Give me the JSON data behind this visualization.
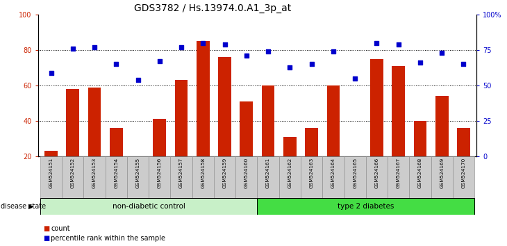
{
  "title": "GDS3782 / Hs.13974.0.A1_3p_at",
  "samples": [
    "GSM524151",
    "GSM524152",
    "GSM524153",
    "GSM524154",
    "GSM524155",
    "GSM524156",
    "GSM524157",
    "GSM524158",
    "GSM524159",
    "GSM524160",
    "GSM524161",
    "GSM524162",
    "GSM524163",
    "GSM524164",
    "GSM524165",
    "GSM524166",
    "GSM524167",
    "GSM524168",
    "GSM524169",
    "GSM524170"
  ],
  "counts": [
    23,
    58,
    59,
    36,
    20,
    41,
    63,
    85,
    76,
    51,
    60,
    31,
    36,
    60,
    20,
    75,
    71,
    40,
    54,
    36
  ],
  "percentiles": [
    59,
    76,
    77,
    65,
    54,
    67,
    77,
    80,
    79,
    71,
    74,
    63,
    65,
    74,
    55,
    80,
    79,
    66,
    73,
    65
  ],
  "non_diabetic_count": 10,
  "type2_diabetes_count": 10,
  "ylim_left": [
    20,
    100
  ],
  "ylim_right": [
    0,
    100
  ],
  "yticks_left": [
    20,
    40,
    60,
    80,
    100
  ],
  "yticks_right": [
    0,
    25,
    50,
    75,
    100
  ],
  "ytick_labels_right": [
    "0",
    "25",
    "50",
    "75",
    "100%"
  ],
  "bar_color": "#cc2200",
  "dot_color": "#0000cc",
  "grid_color": "#000000",
  "bg_color": "#ffffff",
  "label_color_left": "#cc2200",
  "label_color_right": "#0000cc",
  "non_diabetic_color": "#c8f0c8",
  "type2_color": "#44dd44",
  "xticklabel_bg": "#cccccc",
  "legend_count_label": "count",
  "legend_pct_label": "percentile rank within the sample",
  "group_label": "disease state",
  "group1_label": "non-diabetic control",
  "group2_label": "type 2 diabetes"
}
